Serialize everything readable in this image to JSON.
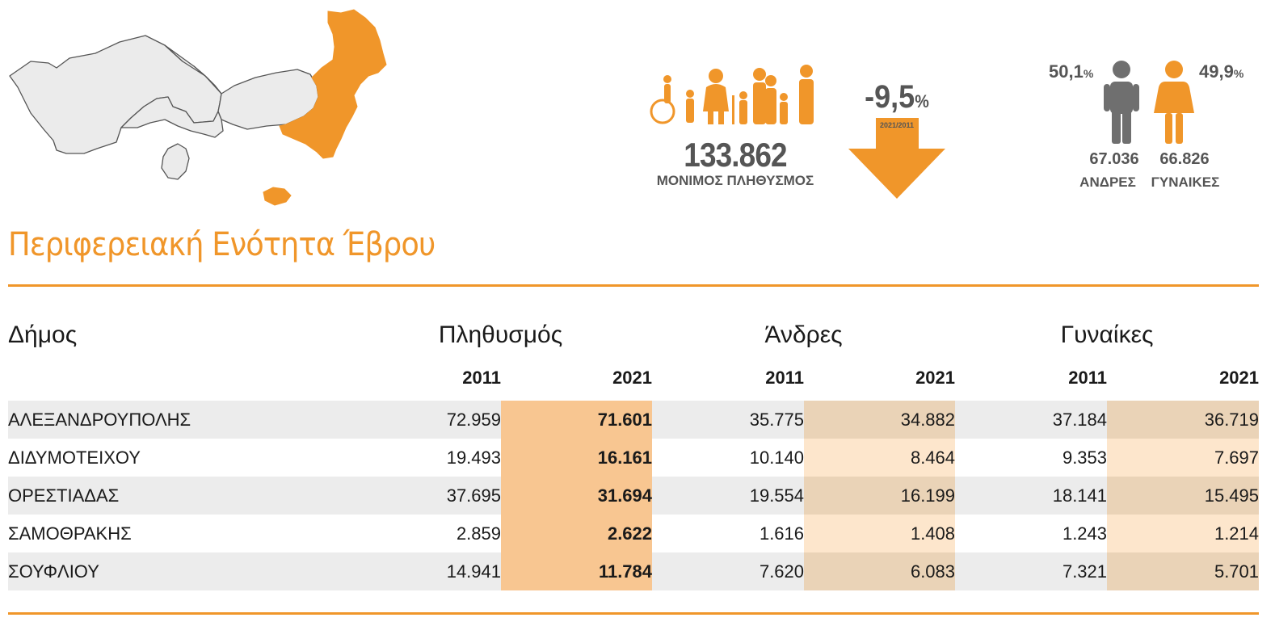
{
  "colors": {
    "accent": "#f0962a",
    "grey_text": "#555555",
    "map_grey": "#ebebeb",
    "highlight_pop": "#f8c691"
  },
  "icons": [
    "greece-region-map",
    "family-icon",
    "down-arrow-icon",
    "man-icon",
    "woman-icon"
  ],
  "population": {
    "total": "133.862",
    "label": "ΜΟΝΙΜΟΣ ΠΛΗΘΥΣΜΟΣ",
    "change": "-9,5",
    "change_unit": "%",
    "change_period": "2021/2011"
  },
  "gender": {
    "men_pct": "50,1",
    "women_pct": "49,9",
    "pct_unit": "%",
    "men_count": "67.036",
    "women_count": "66.826",
    "men_label": "ΑΝΔΡΕΣ",
    "women_label": "ΓΥΝΑΙΚΕΣ"
  },
  "title": "Περιφερειακή Ενότητα Έβρου",
  "table": {
    "headers": {
      "municipality": "Δήμος",
      "population": "Πληθυσμός",
      "men": "Άνδρες",
      "women": "Γυναίκες"
    },
    "years": [
      "2011",
      "2021",
      "2011",
      "2021",
      "2011",
      "2021"
    ],
    "rows": [
      {
        "name": "ΑΛΕΞΑΝΔΡΟΥΠΟΛΗΣ",
        "pop2011": "72.959",
        "pop2021": "71.601",
        "men2011": "35.775",
        "men2021": "34.882",
        "women2011": "37.184",
        "women2021": "36.719"
      },
      {
        "name": "ΔΙΔΥΜΟΤΕΙΧΟΥ",
        "pop2011": "19.493",
        "pop2021": "16.161",
        "men2011": "10.140",
        "men2021": "8.464",
        "women2011": "9.353",
        "women2021": "7.697"
      },
      {
        "name": "ΟΡΕΣΤΙΑΔΑΣ",
        "pop2011": "37.695",
        "pop2021": "31.694",
        "men2011": "19.554",
        "men2021": "16.199",
        "women2011": "18.141",
        "women2021": "15.495"
      },
      {
        "name": "ΣΑΜΟΘΡΑΚΗΣ",
        "pop2011": "2.859",
        "pop2021": "2.622",
        "men2011": "1.616",
        "men2021": "1.408",
        "women2011": "1.243",
        "women2021": "1.214"
      },
      {
        "name": "ΣΟΥΦΛΙΟΥ",
        "pop2011": "14.941",
        "pop2021": "11.784",
        "men2011": "7.620",
        "men2021": "6.083",
        "women2011": "7.321",
        "women2021": "5.701"
      }
    ]
  }
}
